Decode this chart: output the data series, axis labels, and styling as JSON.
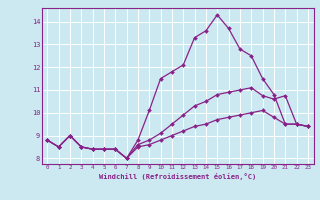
{
  "xlabel": "Windchill (Refroidissement éolien,°C)",
  "background_color": "#cce8f0",
  "line_color": "#882288",
  "grid_color": "#ffffff",
  "xlim": [
    -0.5,
    23.5
  ],
  "ylim": [
    7.75,
    14.6
  ],
  "xticks": [
    0,
    1,
    2,
    3,
    4,
    5,
    6,
    7,
    8,
    9,
    10,
    11,
    12,
    13,
    14,
    15,
    16,
    17,
    18,
    19,
    20,
    21,
    22,
    23
  ],
  "yticks": [
    8,
    9,
    10,
    11,
    12,
    13,
    14
  ],
  "curve1": [
    8.8,
    8.5,
    9.0,
    8.5,
    8.4,
    8.4,
    8.4,
    8.0,
    8.5,
    8.6,
    8.8,
    9.0,
    9.2,
    9.4,
    9.5,
    9.7,
    9.8,
    9.9,
    10.0,
    10.1,
    9.8,
    9.5,
    9.5,
    9.4
  ],
  "curve2": [
    8.8,
    8.5,
    9.0,
    8.5,
    8.4,
    8.4,
    8.4,
    8.0,
    8.6,
    8.8,
    9.1,
    9.5,
    9.9,
    10.3,
    10.5,
    10.8,
    10.9,
    11.0,
    11.1,
    10.75,
    10.6,
    10.75,
    9.5,
    9.4
  ],
  "curve3": [
    8.8,
    8.5,
    9.0,
    8.5,
    8.4,
    8.4,
    8.4,
    8.0,
    8.8,
    10.1,
    11.5,
    11.8,
    12.1,
    13.3,
    13.6,
    14.3,
    13.7,
    12.8,
    12.5,
    11.5,
    10.8,
    9.5,
    9.5,
    9.4
  ]
}
